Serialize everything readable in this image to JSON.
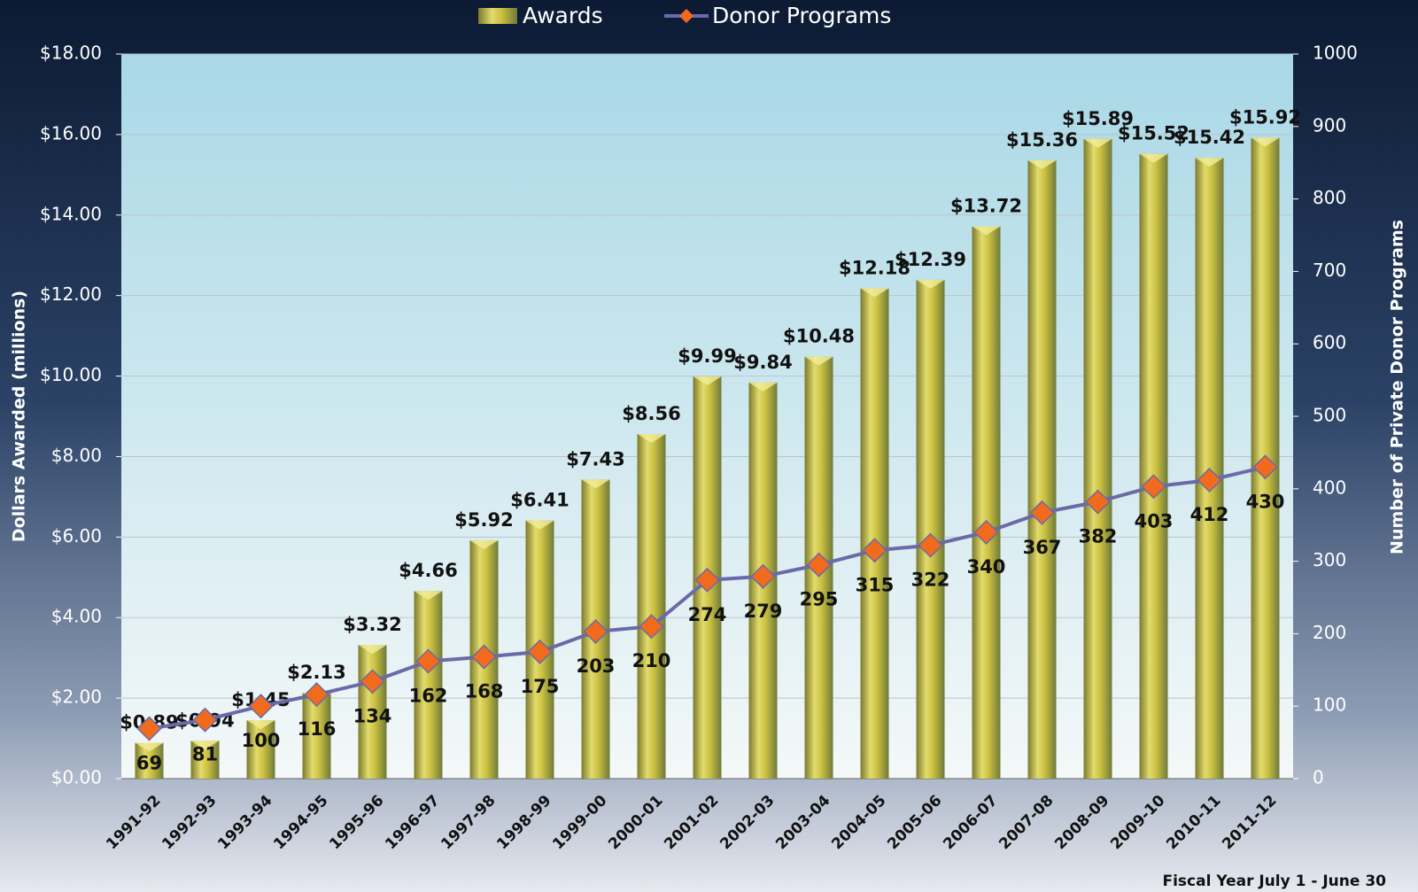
{
  "chart_data": {
    "type": "bar-line",
    "categories": [
      "1991-92",
      "1992-93",
      "1993-94",
      "1994-95",
      "1995-96",
      "1996-97",
      "1997-98",
      "1998-99",
      "1999-00",
      "2000-01",
      "2001-02",
      "2002-03",
      "2003-04",
      "2004-05",
      "2005-06",
      "2006-07",
      "2007-08",
      "2008-09",
      "2009-10",
      "2010-11",
      "2011-12"
    ],
    "series": [
      {
        "name": "Awards",
        "type": "bar",
        "color": "#b8b03a",
        "values": [
          0.89,
          0.94,
          1.45,
          2.13,
          3.32,
          4.66,
          5.92,
          6.41,
          7.43,
          8.56,
          9.99,
          9.84,
          10.48,
          12.18,
          12.39,
          13.72,
          15.36,
          15.89,
          15.52,
          15.42,
          15.92
        ],
        "value_labels": [
          "$0.89",
          "$0.94",
          "$1.45",
          "$2.13",
          "$3.32",
          "$4.66",
          "$5.92",
          "$6.41",
          "$7.43",
          "$8.56",
          "$9.99",
          "$9.84",
          "$10.48",
          "$12.18",
          "$12.39",
          "$13.72",
          "$15.36",
          "$15.89",
          "$15.52",
          "$15.42",
          "$15.92"
        ]
      },
      {
        "name": "Donor Programs",
        "type": "line",
        "axis": "y2",
        "color": "#6a6aa8",
        "marker_color": "#f26b1d",
        "values": [
          69,
          81,
          100,
          116,
          134,
          162,
          168,
          175,
          203,
          210,
          274,
          279,
          295,
          315,
          322,
          340,
          367,
          382,
          403,
          412,
          430
        ]
      }
    ],
    "ylabel": "Dollars Awarded (millions)",
    "y2label": "Number of Private Donor Programs",
    "xlabel": "Fiscal Year July 1 - June 30",
    "ylim": [
      0,
      18
    ],
    "yticks": [
      {
        "value": 0,
        "label": "$0.00"
      },
      {
        "value": 2,
        "label": "$2.00"
      },
      {
        "value": 4,
        "label": "$4.00"
      },
      {
        "value": 6,
        "label": "$6.00"
      },
      {
        "value": 8,
        "label": "$8.00"
      },
      {
        "value": 10,
        "label": "$10.00"
      },
      {
        "value": 12,
        "label": "$12.00"
      },
      {
        "value": 14,
        "label": "$14.00"
      },
      {
        "value": 16,
        "label": "$16.00"
      },
      {
        "value": 18,
        "label": "$18.00"
      }
    ],
    "y2lim": [
      0,
      1000
    ],
    "y2ticks": [
      0,
      100,
      200,
      300,
      400,
      500,
      600,
      700,
      800,
      900,
      1000
    ],
    "grid": true,
    "legend": "top"
  }
}
